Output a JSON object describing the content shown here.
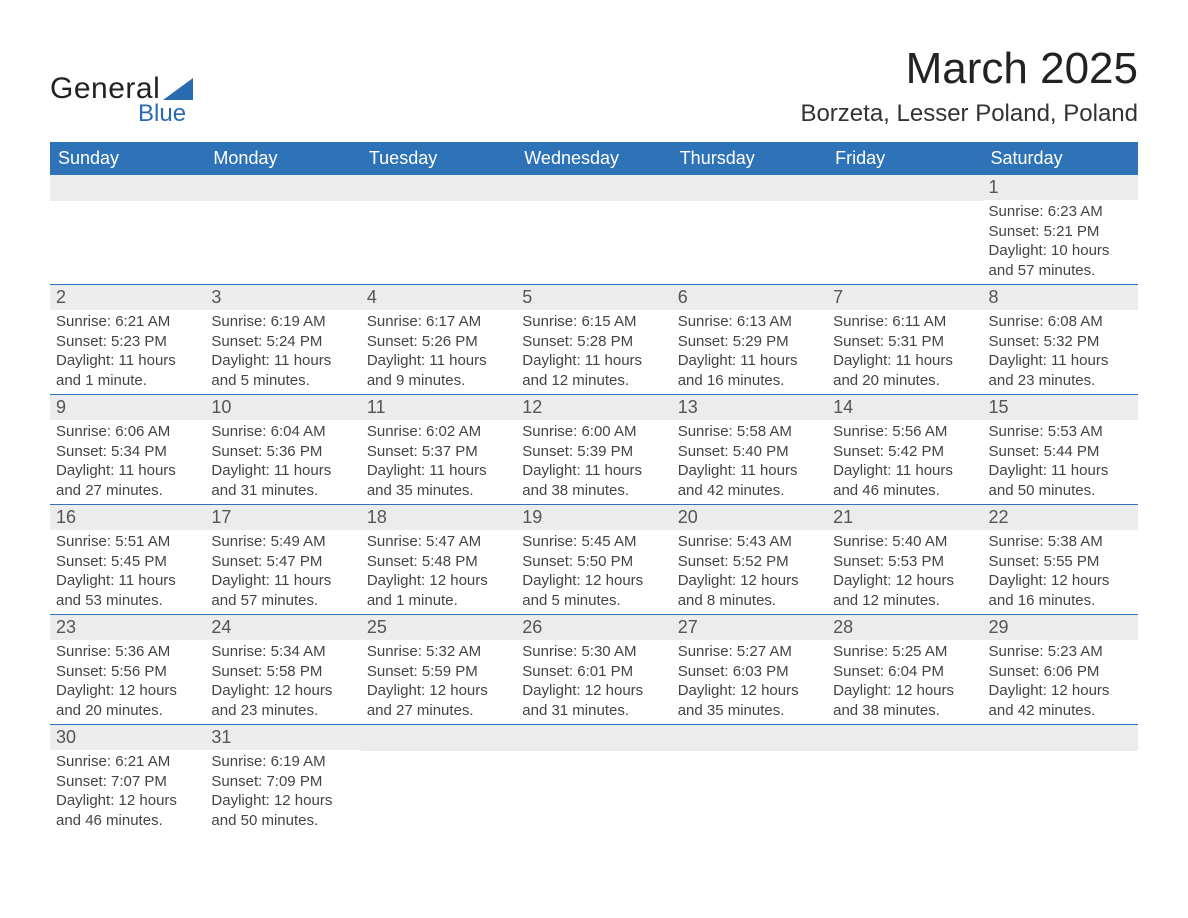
{
  "brand": {
    "word1": "General",
    "word2": "Blue"
  },
  "title": "March 2025",
  "location": "Borzeta, Lesser Poland, Poland",
  "columns": [
    "Sunday",
    "Monday",
    "Tuesday",
    "Wednesday",
    "Thursday",
    "Friday",
    "Saturday"
  ],
  "colors": {
    "header_bg": "#2e73b8",
    "header_text": "#ffffff",
    "daynum_bg": "#ececec",
    "divider": "#2e73b8",
    "body_text": "#444444"
  },
  "weeks": [
    [
      null,
      null,
      null,
      null,
      null,
      null,
      {
        "n": "1",
        "sunrise": "Sunrise: 6:23 AM",
        "sunset": "Sunset: 5:21 PM",
        "dl1": "Daylight: 10 hours",
        "dl2": "and 57 minutes."
      }
    ],
    [
      {
        "n": "2",
        "sunrise": "Sunrise: 6:21 AM",
        "sunset": "Sunset: 5:23 PM",
        "dl1": "Daylight: 11 hours",
        "dl2": "and 1 minute."
      },
      {
        "n": "3",
        "sunrise": "Sunrise: 6:19 AM",
        "sunset": "Sunset: 5:24 PM",
        "dl1": "Daylight: 11 hours",
        "dl2": "and 5 minutes."
      },
      {
        "n": "4",
        "sunrise": "Sunrise: 6:17 AM",
        "sunset": "Sunset: 5:26 PM",
        "dl1": "Daylight: 11 hours",
        "dl2": "and 9 minutes."
      },
      {
        "n": "5",
        "sunrise": "Sunrise: 6:15 AM",
        "sunset": "Sunset: 5:28 PM",
        "dl1": "Daylight: 11 hours",
        "dl2": "and 12 minutes."
      },
      {
        "n": "6",
        "sunrise": "Sunrise: 6:13 AM",
        "sunset": "Sunset: 5:29 PM",
        "dl1": "Daylight: 11 hours",
        "dl2": "and 16 minutes."
      },
      {
        "n": "7",
        "sunrise": "Sunrise: 6:11 AM",
        "sunset": "Sunset: 5:31 PM",
        "dl1": "Daylight: 11 hours",
        "dl2": "and 20 minutes."
      },
      {
        "n": "8",
        "sunrise": "Sunrise: 6:08 AM",
        "sunset": "Sunset: 5:32 PM",
        "dl1": "Daylight: 11 hours",
        "dl2": "and 23 minutes."
      }
    ],
    [
      {
        "n": "9",
        "sunrise": "Sunrise: 6:06 AM",
        "sunset": "Sunset: 5:34 PM",
        "dl1": "Daylight: 11 hours",
        "dl2": "and 27 minutes."
      },
      {
        "n": "10",
        "sunrise": "Sunrise: 6:04 AM",
        "sunset": "Sunset: 5:36 PM",
        "dl1": "Daylight: 11 hours",
        "dl2": "and 31 minutes."
      },
      {
        "n": "11",
        "sunrise": "Sunrise: 6:02 AM",
        "sunset": "Sunset: 5:37 PM",
        "dl1": "Daylight: 11 hours",
        "dl2": "and 35 minutes."
      },
      {
        "n": "12",
        "sunrise": "Sunrise: 6:00 AM",
        "sunset": "Sunset: 5:39 PM",
        "dl1": "Daylight: 11 hours",
        "dl2": "and 38 minutes."
      },
      {
        "n": "13",
        "sunrise": "Sunrise: 5:58 AM",
        "sunset": "Sunset: 5:40 PM",
        "dl1": "Daylight: 11 hours",
        "dl2": "and 42 minutes."
      },
      {
        "n": "14",
        "sunrise": "Sunrise: 5:56 AM",
        "sunset": "Sunset: 5:42 PM",
        "dl1": "Daylight: 11 hours",
        "dl2": "and 46 minutes."
      },
      {
        "n": "15",
        "sunrise": "Sunrise: 5:53 AM",
        "sunset": "Sunset: 5:44 PM",
        "dl1": "Daylight: 11 hours",
        "dl2": "and 50 minutes."
      }
    ],
    [
      {
        "n": "16",
        "sunrise": "Sunrise: 5:51 AM",
        "sunset": "Sunset: 5:45 PM",
        "dl1": "Daylight: 11 hours",
        "dl2": "and 53 minutes."
      },
      {
        "n": "17",
        "sunrise": "Sunrise: 5:49 AM",
        "sunset": "Sunset: 5:47 PM",
        "dl1": "Daylight: 11 hours",
        "dl2": "and 57 minutes."
      },
      {
        "n": "18",
        "sunrise": "Sunrise: 5:47 AM",
        "sunset": "Sunset: 5:48 PM",
        "dl1": "Daylight: 12 hours",
        "dl2": "and 1 minute."
      },
      {
        "n": "19",
        "sunrise": "Sunrise: 5:45 AM",
        "sunset": "Sunset: 5:50 PM",
        "dl1": "Daylight: 12 hours",
        "dl2": "and 5 minutes."
      },
      {
        "n": "20",
        "sunrise": "Sunrise: 5:43 AM",
        "sunset": "Sunset: 5:52 PM",
        "dl1": "Daylight: 12 hours",
        "dl2": "and 8 minutes."
      },
      {
        "n": "21",
        "sunrise": "Sunrise: 5:40 AM",
        "sunset": "Sunset: 5:53 PM",
        "dl1": "Daylight: 12 hours",
        "dl2": "and 12 minutes."
      },
      {
        "n": "22",
        "sunrise": "Sunrise: 5:38 AM",
        "sunset": "Sunset: 5:55 PM",
        "dl1": "Daylight: 12 hours",
        "dl2": "and 16 minutes."
      }
    ],
    [
      {
        "n": "23",
        "sunrise": "Sunrise: 5:36 AM",
        "sunset": "Sunset: 5:56 PM",
        "dl1": "Daylight: 12 hours",
        "dl2": "and 20 minutes."
      },
      {
        "n": "24",
        "sunrise": "Sunrise: 5:34 AM",
        "sunset": "Sunset: 5:58 PM",
        "dl1": "Daylight: 12 hours",
        "dl2": "and 23 minutes."
      },
      {
        "n": "25",
        "sunrise": "Sunrise: 5:32 AM",
        "sunset": "Sunset: 5:59 PM",
        "dl1": "Daylight: 12 hours",
        "dl2": "and 27 minutes."
      },
      {
        "n": "26",
        "sunrise": "Sunrise: 5:30 AM",
        "sunset": "Sunset: 6:01 PM",
        "dl1": "Daylight: 12 hours",
        "dl2": "and 31 minutes."
      },
      {
        "n": "27",
        "sunrise": "Sunrise: 5:27 AM",
        "sunset": "Sunset: 6:03 PM",
        "dl1": "Daylight: 12 hours",
        "dl2": "and 35 minutes."
      },
      {
        "n": "28",
        "sunrise": "Sunrise: 5:25 AM",
        "sunset": "Sunset: 6:04 PM",
        "dl1": "Daylight: 12 hours",
        "dl2": "and 38 minutes."
      },
      {
        "n": "29",
        "sunrise": "Sunrise: 5:23 AM",
        "sunset": "Sunset: 6:06 PM",
        "dl1": "Daylight: 12 hours",
        "dl2": "and 42 minutes."
      }
    ],
    [
      {
        "n": "30",
        "sunrise": "Sunrise: 6:21 AM",
        "sunset": "Sunset: 7:07 PM",
        "dl1": "Daylight: 12 hours",
        "dl2": "and 46 minutes."
      },
      {
        "n": "31",
        "sunrise": "Sunrise: 6:19 AM",
        "sunset": "Sunset: 7:09 PM",
        "dl1": "Daylight: 12 hours",
        "dl2": "and 50 minutes."
      },
      null,
      null,
      null,
      null,
      null
    ]
  ]
}
